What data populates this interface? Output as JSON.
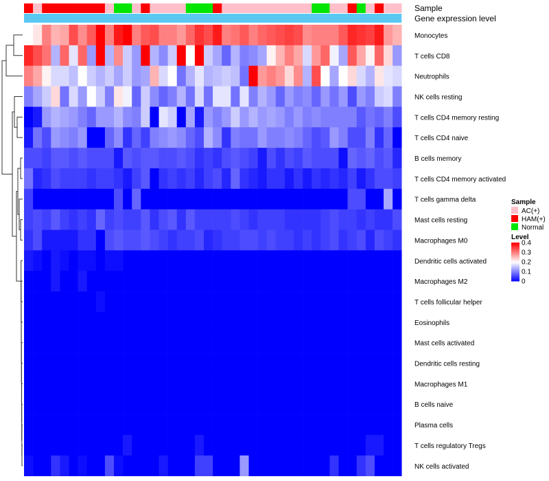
{
  "chart_data": {
    "type": "heatmap",
    "annotation_tracks": [
      "Sample",
      "Gene expression level"
    ],
    "sample_groups": [
      "HAM(+)",
      "AC(+)",
      "HAM(+)",
      "HAM(+)",
      "HAM(+)",
      "HAM(+)",
      "HAM(+)",
      "HAM(+)",
      "HAM(+)",
      "AC(+)",
      "Normal",
      "Normal",
      "AC(+)",
      "HAM(+)",
      "AC(+)",
      "AC(+)",
      "AC(+)",
      "AC(+)",
      "Normal",
      "Normal",
      "Normal",
      "HAM(+)",
      "AC(+)",
      "AC(+)",
      "AC(+)",
      "AC(+)",
      "AC(+)",
      "AC(+)",
      "AC(+)",
      "AC(+)",
      "AC(+)",
      "AC(+)",
      "Normal",
      "Normal",
      "AC(+)",
      "AC(+)",
      "HAM(+)",
      "Normal",
      "AC(+)",
      "HAM(+)",
      "AC(+)",
      "AC(+)"
    ],
    "rows": [
      "Monocytes",
      "T cells CD8",
      "Neutrophils",
      "NK cells resting",
      "T cells CD4 memory resting",
      "T cells CD4 naive",
      "B cells memory",
      "T cells CD4 memory activated",
      "T cells gamma delta",
      "Mast cells resting",
      "Macrophages M0",
      "Dendritic cells activated",
      "Macrophages M2",
      "T cells follicular helper",
      "Eosinophils",
      "Mast cells activated",
      "Dendritic cells resting",
      "Macrophages M1",
      "B cells naive",
      "Plasma cells",
      "T cells regulatory  Tregs",
      "NK cells activated"
    ],
    "matrix": [
      [
        0.2,
        0.22,
        0.3,
        0.26,
        0.27,
        0.34,
        0.29,
        0.33,
        0.4,
        0.3,
        0.38,
        0.4,
        0.3,
        0.33,
        0.34,
        0.3,
        0.3,
        0.28,
        0.32,
        0.36,
        0.34,
        0.38,
        0.3,
        0.31,
        0.33,
        0.3,
        0.32,
        0.33,
        0.34,
        0.35,
        0.34,
        0.29,
        0.3,
        0.3,
        0.3,
        0.33,
        0.37,
        0.36,
        0.35,
        0.38,
        0.28,
        0.26
      ],
      [
        0.37,
        0.34,
        0.31,
        0.14,
        0.32,
        0.18,
        0.32,
        0.12,
        0.4,
        0.14,
        0.29,
        0.16,
        0.12,
        0.4,
        0.14,
        0.11,
        0.16,
        0.4,
        0.2,
        0.4,
        0.16,
        0.13,
        0.08,
        0.14,
        0.1,
        0.11,
        0.13,
        0.21,
        0.26,
        0.3,
        0.27,
        0.17,
        0.28,
        0.32,
        0.19,
        0.13,
        0.33,
        0.27,
        0.21,
        0.32,
        0.23,
        0.12
      ],
      [
        0.3,
        0.27,
        0.21,
        0.17,
        0.17,
        0.15,
        0.2,
        0.16,
        0.14,
        0.16,
        0.13,
        0.16,
        0.12,
        0.13,
        0.26,
        0.17,
        0.2,
        0.09,
        0.14,
        0.18,
        0.14,
        0.15,
        0.16,
        0.15,
        0.09,
        0.4,
        0.28,
        0.3,
        0.28,
        0.23,
        0.29,
        0.14,
        0.34,
        0.2,
        0.13,
        0.2,
        0.23,
        0.17,
        0.14,
        0.22,
        0.18,
        0.17
      ],
      [
        0.1,
        0.13,
        0.16,
        0.23,
        0.09,
        0.17,
        0.12,
        0.2,
        0.16,
        0.1,
        0.22,
        0.19,
        0.08,
        0.16,
        0.11,
        0.08,
        0.1,
        0.14,
        0.09,
        0.17,
        0.09,
        0.18,
        0.18,
        0.09,
        0.18,
        0.1,
        0.14,
        0.12,
        0.08,
        0.12,
        0.1,
        0.11,
        0.08,
        0.12,
        0.09,
        0.12,
        0.06,
        0.12,
        0.1,
        0.16,
        0.17,
        0.1
      ],
      [
        0.0,
        0.02,
        0.12,
        0.14,
        0.13,
        0.12,
        0.1,
        0.08,
        0.12,
        0.12,
        0.14,
        0.11,
        0.1,
        0.16,
        0.0,
        0.18,
        0.16,
        0.0,
        0.13,
        0.02,
        0.12,
        0.1,
        0.12,
        0.16,
        0.12,
        0.14,
        0.12,
        0.13,
        0.12,
        0.1,
        0.12,
        0.1,
        0.11,
        0.1,
        0.1,
        0.1,
        0.1,
        0.07,
        0.09,
        0.08,
        0.1,
        0.06
      ],
      [
        0.02,
        0.09,
        0.06,
        0.12,
        0.11,
        0.1,
        0.12,
        0.0,
        0.0,
        0.08,
        0.11,
        0.04,
        0.08,
        0.05,
        0.1,
        0.11,
        0.12,
        0.11,
        0.08,
        0.06,
        0.14,
        0.11,
        0.04,
        0.1,
        0.09,
        0.09,
        0.12,
        0.1,
        0.1,
        0.11,
        0.1,
        0.08,
        0.06,
        0.07,
        0.12,
        0.1,
        0.06,
        0.06,
        0.1,
        0.04,
        0.08,
        0.0
      ],
      [
        0.06,
        0.06,
        0.05,
        0.07,
        0.07,
        0.06,
        0.07,
        0.06,
        0.06,
        0.06,
        0.02,
        0.07,
        0.06,
        0.07,
        0.07,
        0.06,
        0.06,
        0.07,
        0.06,
        0.04,
        0.05,
        0.04,
        0.06,
        0.07,
        0.06,
        0.05,
        0.02,
        0.06,
        0.04,
        0.06,
        0.05,
        0.07,
        0.06,
        0.06,
        0.06,
        0.01,
        0.08,
        0.07,
        0.08,
        0.06,
        0.07,
        0.03
      ],
      [
        0.09,
        0.03,
        0.04,
        0.06,
        0.05,
        0.05,
        0.05,
        0.04,
        0.05,
        0.05,
        0.04,
        0.02,
        0.05,
        0.07,
        0.0,
        0.04,
        0.05,
        0.04,
        0.05,
        0.03,
        0.05,
        0.06,
        0.03,
        0.08,
        0.04,
        0.03,
        0.02,
        0.04,
        0.04,
        0.02,
        0.04,
        0.02,
        0.04,
        0.03,
        0.04,
        0.03,
        0.05,
        0.02,
        0.04,
        0.06,
        0.06,
        0.05
      ],
      [
        0.05,
        0.0,
        0.0,
        0.0,
        0.0,
        0.0,
        0.0,
        0.0,
        0.0,
        0.0,
        0.06,
        0.0,
        0.08,
        0.0,
        0.0,
        0.0,
        0.0,
        0.0,
        0.0,
        0.0,
        0.0,
        0.0,
        0.0,
        0.0,
        0.0,
        0.0,
        0.0,
        0.0,
        0.0,
        0.0,
        0.0,
        0.0,
        0.0,
        0.0,
        0.0,
        0.0,
        0.06,
        0.06,
        0.0,
        0.0,
        0.13,
        0.0
      ],
      [
        0.05,
        0.06,
        0.05,
        0.07,
        0.05,
        0.04,
        0.05,
        0.04,
        0.08,
        0.05,
        0.06,
        0.05,
        0.05,
        0.07,
        0.04,
        0.06,
        0.07,
        0.04,
        0.07,
        0.05,
        0.05,
        0.05,
        0.05,
        0.06,
        0.05,
        0.04,
        0.05,
        0.05,
        0.05,
        0.04,
        0.04,
        0.04,
        0.04,
        0.05,
        0.06,
        0.05,
        0.05,
        0.04,
        0.05,
        0.04,
        0.04,
        0.06
      ],
      [
        0.04,
        0.06,
        0.02,
        0.02,
        0.02,
        0.02,
        0.04,
        0.04,
        0.0,
        0.06,
        0.07,
        0.06,
        0.06,
        0.07,
        0.06,
        0.05,
        0.04,
        0.05,
        0.05,
        0.06,
        0.03,
        0.04,
        0.05,
        0.05,
        0.06,
        0.06,
        0.05,
        0.06,
        0.05,
        0.05,
        0.04,
        0.05,
        0.04,
        0.05,
        0.06,
        0.04,
        0.05,
        0.06,
        0.03,
        0.06,
        0.05,
        0.04
      ],
      [
        0.02,
        0.01,
        0.0,
        0.02,
        0.01,
        0.0,
        0.01,
        0.01,
        0.0,
        0.01,
        0.01,
        0.0,
        0.0,
        0.0,
        0.0,
        0.0,
        0.0,
        0.0,
        0.0,
        0.0,
        0.0,
        0.0,
        0.0,
        0.0,
        0.0,
        0.0,
        0.0,
        0.0,
        0.0,
        0.0,
        0.0,
        0.0,
        0.0,
        0.0,
        0.0,
        0.0,
        0.0,
        0.0,
        0.0,
        0.0,
        0.0,
        0.0
      ],
      [
        0.0,
        0.0,
        0.0,
        0.02,
        0.0,
        0.0,
        0.02,
        0.0,
        0.0,
        0.0,
        0.0,
        0.0,
        0.0,
        0.0,
        0.0,
        0.0,
        0.0,
        0.0,
        0.0,
        0.0,
        0.0,
        0.0,
        0.0,
        0.0,
        0.0,
        0.0,
        0.0,
        0.0,
        0.0,
        0.0,
        0.0,
        0.0,
        0.0,
        0.0,
        0.0,
        0.0,
        0.0,
        0.0,
        0.0,
        0.0,
        0.0,
        0.0
      ],
      [
        0.0,
        0.0,
        0.0,
        0.0,
        0.0,
        0.0,
        0.0,
        0.0,
        0.01,
        0.0,
        0.0,
        0.0,
        0.0,
        0.0,
        0.0,
        0.0,
        0.0,
        0.0,
        0.0,
        0.0,
        0.0,
        0.0,
        0.0,
        0.0,
        0.0,
        0.0,
        0.0,
        0.0,
        0.0,
        0.0,
        0.0,
        0.0,
        0.0,
        0.0,
        0.0,
        0.0,
        0.0,
        0.0,
        0.0,
        0.0,
        0.0,
        0.0
      ],
      [
        0.0,
        0.0,
        0.0,
        0.0,
        0.0,
        0.0,
        0.0,
        0.0,
        0.0,
        0.0,
        0.0,
        0.0,
        0.0,
        0.0,
        0.0,
        0.0,
        0.0,
        0.0,
        0.0,
        0.0,
        0.0,
        0.0,
        0.0,
        0.0,
        0.0,
        0.0,
        0.0,
        0.0,
        0.0,
        0.0,
        0.0,
        0.0,
        0.0,
        0.0,
        0.0,
        0.0,
        0.0,
        0.0,
        0.0,
        0.0,
        0.0,
        0.0
      ],
      [
        0.0,
        0.0,
        0.0,
        0.0,
        0.0,
        0.0,
        0.0,
        0.0,
        0.0,
        0.0,
        0.0,
        0.0,
        0.0,
        0.0,
        0.0,
        0.0,
        0.0,
        0.0,
        0.0,
        0.0,
        0.0,
        0.0,
        0.0,
        0.0,
        0.0,
        0.0,
        0.0,
        0.0,
        0.0,
        0.0,
        0.0,
        0.0,
        0.0,
        0.0,
        0.0,
        0.0,
        0.0,
        0.0,
        0.0,
        0.0,
        0.0,
        0.0
      ],
      [
        0.0,
        0.0,
        0.0,
        0.0,
        0.0,
        0.0,
        0.0,
        0.0,
        0.0,
        0.0,
        0.0,
        0.0,
        0.0,
        0.0,
        0.0,
        0.0,
        0.0,
        0.0,
        0.0,
        0.0,
        0.0,
        0.0,
        0.0,
        0.0,
        0.0,
        0.0,
        0.0,
        0.0,
        0.0,
        0.0,
        0.0,
        0.0,
        0.0,
        0.0,
        0.0,
        0.0,
        0.0,
        0.0,
        0.0,
        0.0,
        0.0,
        0.0
      ],
      [
        0.0,
        0.0,
        0.0,
        0.0,
        0.0,
        0.0,
        0.0,
        0.0,
        0.0,
        0.0,
        0.0,
        0.0,
        0.0,
        0.0,
        0.0,
        0.0,
        0.0,
        0.0,
        0.0,
        0.0,
        0.0,
        0.0,
        0.0,
        0.0,
        0.0,
        0.0,
        0.0,
        0.0,
        0.0,
        0.0,
        0.0,
        0.0,
        0.0,
        0.0,
        0.0,
        0.0,
        0.0,
        0.0,
        0.0,
        0.0,
        0.0,
        0.0
      ],
      [
        0.0,
        0.0,
        0.0,
        0.0,
        0.0,
        0.0,
        0.0,
        0.0,
        0.0,
        0.0,
        0.0,
        0.0,
        0.0,
        0.0,
        0.0,
        0.0,
        0.0,
        0.0,
        0.0,
        0.0,
        0.0,
        0.0,
        0.0,
        0.0,
        0.0,
        0.0,
        0.0,
        0.0,
        0.0,
        0.0,
        0.0,
        0.0,
        0.0,
        0.0,
        0.0,
        0.0,
        0.0,
        0.0,
        0.0,
        0.0,
        0.0,
        0.0
      ],
      [
        0.0,
        0.0,
        0.0,
        0.0,
        0.0,
        0.0,
        0.0,
        0.0,
        0.0,
        0.0,
        0.0,
        0.0,
        0.0,
        0.0,
        0.0,
        0.0,
        0.0,
        0.0,
        0.0,
        0.0,
        0.0,
        0.0,
        0.0,
        0.0,
        0.0,
        0.0,
        0.0,
        0.0,
        0.0,
        0.0,
        0.0,
        0.0,
        0.0,
        0.0,
        0.0,
        0.0,
        0.0,
        0.0,
        0.0,
        0.0,
        0.0,
        0.0
      ],
      [
        0.0,
        0.0,
        0.0,
        0.0,
        0.0,
        0.0,
        0.0,
        0.0,
        0.0,
        0.0,
        0.0,
        0.02,
        0.0,
        0.0,
        0.0,
        0.0,
        0.0,
        0.0,
        0.0,
        0.02,
        0.0,
        0.0,
        0.0,
        0.0,
        0.0,
        0.0,
        0.0,
        0.0,
        0.0,
        0.0,
        0.0,
        0.0,
        0.0,
        0.0,
        0.0,
        0.0,
        0.0,
        0.0,
        0.02,
        0.02,
        0.0,
        0.0
      ],
      [
        0.01,
        0.0,
        0.0,
        0.04,
        0.02,
        0.0,
        0.01,
        0.0,
        0.0,
        0.06,
        0.01,
        0.0,
        0.0,
        0.0,
        0.0,
        0.02,
        0.0,
        0.0,
        0.0,
        0.05,
        0.05,
        0.0,
        0.0,
        0.0,
        0.12,
        0.0,
        0.0,
        0.0,
        0.0,
        0.0,
        0.0,
        0.0,
        0.0,
        0.0,
        0.04,
        0.0,
        0.0,
        0.04,
        0.06,
        0.0,
        0.0,
        0.0
      ]
    ],
    "gene_expression_track_color": "#5bc8f2",
    "group_colors": {
      "AC(+)": "#ffc0cb",
      "HAM(+)": "#ff0000",
      "Normal": "#00e600"
    },
    "legend_sample": {
      "title": "Sample",
      "items": [
        "AC(+)",
        "HAM(+)",
        "Normal"
      ]
    },
    "legend_level": {
      "title": "Level",
      "ticks": [
        0.4,
        0.3,
        0.2,
        0.1,
        0
      ],
      "tick_labels": [
        "0.4",
        "0.3",
        "0.2",
        "0.1",
        "0"
      ]
    },
    "color_scale": {
      "low": "#0000ff",
      "mid": "#ffffff",
      "high": "#ff0000",
      "range": [
        0,
        0.4
      ]
    },
    "dendrogram": "rows"
  }
}
